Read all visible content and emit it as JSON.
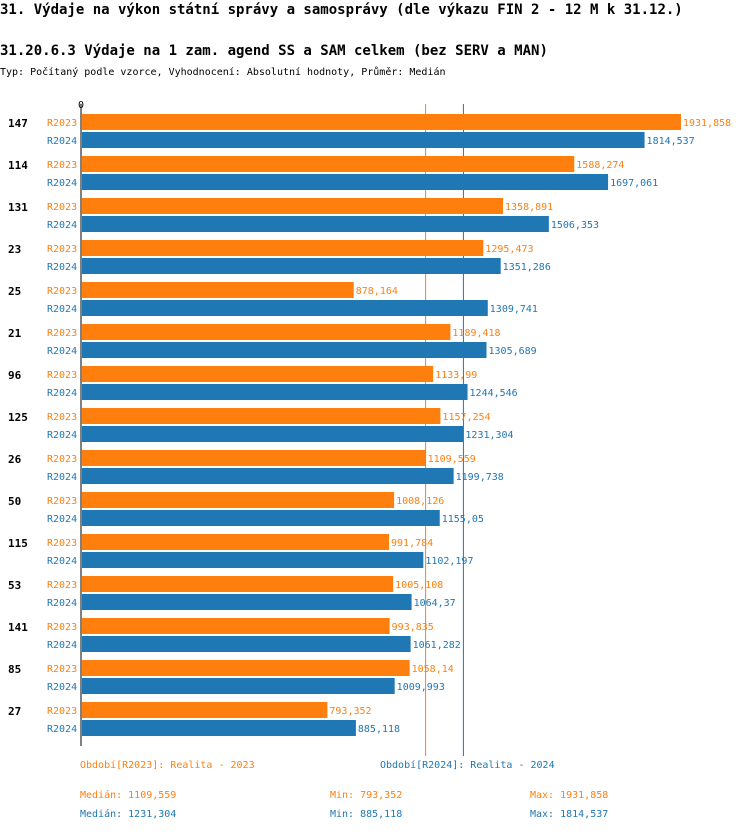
{
  "header": {
    "title": "31. Výdaje na výkon státní správy a samosprávy (dle výkazu FIN 2 - 12 M k 31.12.)",
    "subtitle": "31.20.6.3 Výdaje na 1 zam. agend SS a SAM celkem (bez SERV a MAN)",
    "info": "Typ: Počítaný podle vzorce, Vyhodnocení: Absolutní hodnoty, Průměr: Medián"
  },
  "chart_data": {
    "type": "bar",
    "orientation": "horizontal",
    "axis_zero_label": "0",
    "xlim": [
      0,
      1931.858
    ],
    "categories": [
      "147",
      "114",
      "131",
      "23",
      "25",
      "21",
      "96",
      "125",
      "26",
      "50",
      "115",
      "53",
      "141",
      "85",
      "27"
    ],
    "series": [
      {
        "name": "R2023",
        "color": "#ff7f0e",
        "values": [
          1931.858,
          1588.274,
          1358.891,
          1295.473,
          878.164,
          1189.418,
          1133.99,
          1157.254,
          1109.559,
          1008.126,
          991.784,
          1005.108,
          993.835,
          1058.14,
          793.352
        ],
        "labels": [
          "1931,858",
          "1588,274",
          "1358,891",
          "1295,473",
          "878,164",
          "1189,418",
          "1133,99",
          "1157,254",
          "1109,559",
          "1008,126",
          "991,784",
          "1005,108",
          "993,835",
          "1058,14",
          "793,352"
        ]
      },
      {
        "name": "R2024",
        "color": "#1f77b4",
        "values": [
          1814.537,
          1697.061,
          1506.353,
          1351.286,
          1309.741,
          1305.689,
          1244.546,
          1231.304,
          1199.738,
          1155.05,
          1102.197,
          1064.37,
          1061.282,
          1009.993,
          885.118
        ],
        "labels": [
          "1814,537",
          "1697,061",
          "1506,353",
          "1351,286",
          "1309,741",
          "1305,689",
          "1244,546",
          "1231,304",
          "1199,738",
          "1155,05",
          "1102,197",
          "1064,37",
          "1061,282",
          "1009,993",
          "885,118"
        ]
      }
    ],
    "median_lines": [
      {
        "series": "R2023",
        "value": 1109.559
      },
      {
        "series": "R2024",
        "value": 1231.304
      }
    ]
  },
  "legend": {
    "r2023": "Období[R2023]: Realita - 2023",
    "r2024": "Období[R2024]: Realita - 2024"
  },
  "stats": {
    "r2023": {
      "median": "Medián: 1109,559",
      "min": "Min: 793,352",
      "max": "Max: 1931,858"
    },
    "r2024": {
      "median": "Medián: 1231,304",
      "min": "Min: 885,118",
      "max": "Max: 1814,537"
    }
  }
}
